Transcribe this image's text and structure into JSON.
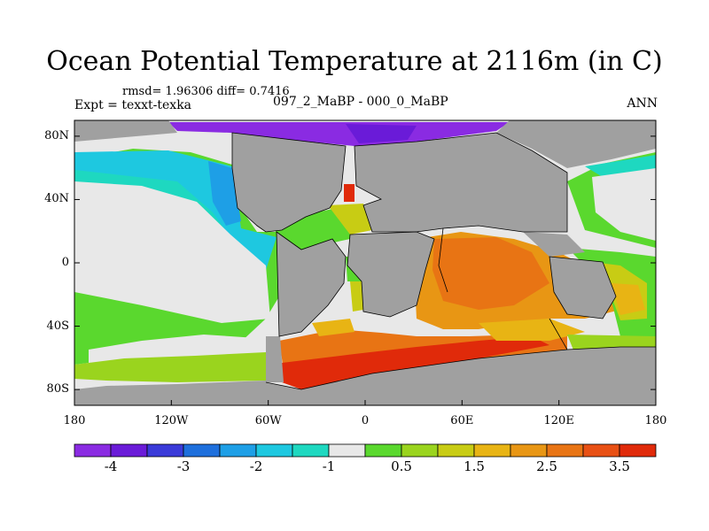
{
  "title": "Ocean Potential Temperature at 2116m (in C)",
  "stats": "rmsd= 1.96306 diff= 0.7416",
  "left_label": "Expt = texxt-texka",
  "center_label": "097_2_MaBP - 000_0_MaBP",
  "right_label": "ANN",
  "map": {
    "lon_range": [
      -180,
      180
    ],
    "lat_range": [
      -90,
      90
    ],
    "lon_ticks": [
      {
        "value": -180,
        "label": "180"
      },
      {
        "value": -120,
        "label": "120W"
      },
      {
        "value": -60,
        "label": "60W"
      },
      {
        "value": 0,
        "label": "0"
      },
      {
        "value": 60,
        "label": "60E"
      },
      {
        "value": 120,
        "label": "120E"
      },
      {
        "value": 180,
        "label": "180"
      }
    ],
    "lat_ticks": [
      {
        "value": 80,
        "label": "80N"
      },
      {
        "value": 40,
        "label": "40N"
      },
      {
        "value": 0,
        "label": "0"
      },
      {
        "value": -40,
        "label": "40S"
      },
      {
        "value": -80,
        "label": "80S"
      }
    ],
    "land_color": "#a0a0a0"
  },
  "colorbar": {
    "colors": [
      "#8a2be2",
      "#6a1bd8",
      "#3a3ad8",
      "#1e6fdc",
      "#1e9fe6",
      "#1ec8e0",
      "#1ed8c0",
      "#e8e8e8",
      "#5ad82e",
      "#9ad41e",
      "#c8cc14",
      "#e8b414",
      "#e89614",
      "#e87414",
      "#e85014",
      "#e02a0a"
    ],
    "labels": [
      {
        "index": 1,
        "label": "-4"
      },
      {
        "index": 3,
        "label": "-3"
      },
      {
        "index": 5,
        "label": "-2"
      },
      {
        "index": 7,
        "label": "-1"
      },
      {
        "index": 9,
        "label": "0.5"
      },
      {
        "index": 11,
        "label": "1.5"
      },
      {
        "index": 13,
        "label": "2.5"
      },
      {
        "index": 15,
        "label": "3.5"
      }
    ]
  }
}
